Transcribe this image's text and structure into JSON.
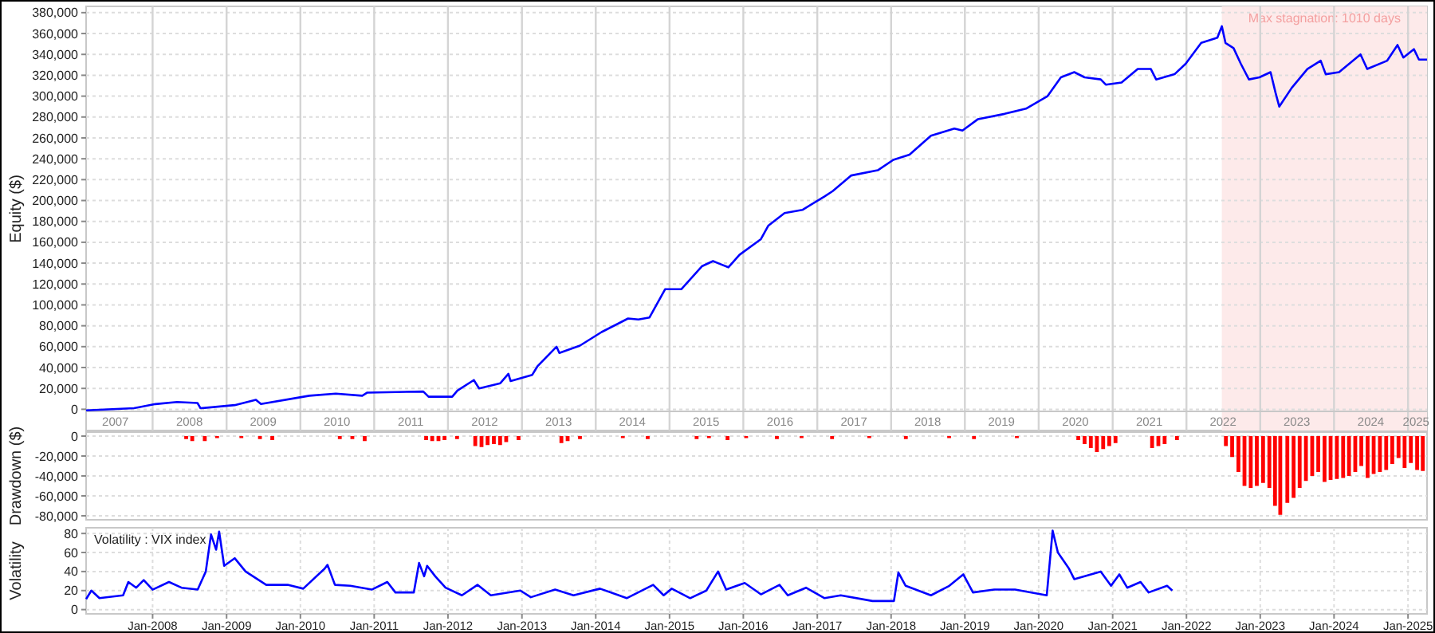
{
  "chart_data": [
    {
      "type": "line",
      "ylabel": "Equity ($)",
      "grid": true,
      "xlim": [
        "2007-02-06",
        "2025-04-05"
      ],
      "ylim": [
        -2000,
        386000
      ],
      "yticks": [
        0,
        {
          "value": 20000,
          "label": "20,000"
        },
        {
          "value": 40000,
          "label": "40,000"
        },
        {
          "value": 60000,
          "label": "60,000"
        },
        {
          "value": 80000,
          "label": "80,000"
        },
        {
          "value": 100000,
          "label": "100,000"
        },
        {
          "value": 120000,
          "label": "120,000"
        },
        {
          "value": 140000,
          "label": "140,000"
        },
        {
          "value": 160000,
          "label": "160,000"
        },
        {
          "value": 180000,
          "label": "180,000"
        },
        {
          "value": 200000,
          "label": "200,000"
        },
        {
          "value": 220000,
          "label": "220,000"
        },
        {
          "value": 240000,
          "label": "240,000"
        },
        {
          "value": 260000,
          "label": "260,000"
        },
        {
          "value": 280000,
          "label": "280,000"
        },
        {
          "value": 300000,
          "label": "300,000"
        },
        {
          "value": 320000,
          "label": "320,000"
        },
        {
          "value": 340000,
          "label": "340,000"
        },
        {
          "value": 360000,
          "label": "360,000"
        },
        {
          "value": 380000,
          "label": "380,000"
        }
      ],
      "xticks": [
        {
          "value": "2007-07-01",
          "label": "2007"
        },
        {
          "value": "2008-01-01",
          "label": null
        },
        {
          "value": "2008-07-01",
          "label": "2008"
        },
        {
          "value": "2009-01-01",
          "label": null
        },
        {
          "value": "2009-07-01",
          "label": "2009"
        },
        {
          "value": "2010-01-01",
          "label": null
        },
        {
          "value": "2010-07-01",
          "label": "2010"
        },
        {
          "value": "2011-01-01",
          "label": null
        },
        {
          "value": "2011-07-01",
          "label": "2011"
        },
        {
          "value": "2012-01-01",
          "label": null
        },
        {
          "value": "2012-07-01",
          "label": "2012"
        },
        {
          "value": "2013-01-01",
          "label": null
        },
        {
          "value": "2013-07-01",
          "label": "2013"
        },
        {
          "value": "2014-01-01",
          "label": null
        },
        {
          "value": "2014-07-01",
          "label": "2014"
        },
        {
          "value": "2015-01-01",
          "label": null
        },
        {
          "value": "2015-07-01",
          "label": "2015"
        },
        {
          "value": "2016-01-01",
          "label": null
        },
        {
          "value": "2016-07-01",
          "label": "2016"
        },
        {
          "value": "2017-01-01",
          "label": null
        },
        {
          "value": "2017-07-01",
          "label": "2017"
        },
        {
          "value": "2018-01-01",
          "label": null
        },
        {
          "value": "2018-07-01",
          "label": "2018"
        },
        {
          "value": "2019-01-01",
          "label": null
        },
        {
          "value": "2019-07-01",
          "label": "2019"
        },
        {
          "value": "2020-01-01",
          "label": null
        },
        {
          "value": "2020-07-01",
          "label": "2020"
        },
        {
          "value": "2021-01-01",
          "label": null
        },
        {
          "value": "2021-07-01",
          "label": "2021"
        },
        {
          "value": "2022-01-01",
          "label": null
        },
        {
          "value": "2022-07-01",
          "label": "2022"
        },
        {
          "value": "2023-01-01",
          "label": null
        },
        {
          "value": "2023-07-01",
          "label": "2023"
        },
        {
          "value": "2024-01-01",
          "label": null
        },
        {
          "value": "2024-07-01",
          "label": "2024"
        },
        {
          "value": "2025-01-01",
          "label": null
        },
        {
          "value": "2025-02-10",
          "label": "2025"
        }
      ],
      "bands": [
        {
          "axis": "x",
          "from": "2022-06-25",
          "to": "2025-04-05",
          "label": "Max stagnation: 1010 days",
          "color": "#fdeaea"
        }
      ],
      "x": [
        "2007-02-06",
        "2007-10-01",
        "2008-01-15",
        "2008-05-01",
        "2008-08-10",
        "2008-08-25",
        "2009-02-10",
        "2009-05-26",
        "2009-06-20",
        "2010-02-14",
        "2010-06-25",
        "2010-11-03",
        "2010-11-28",
        "2011-09-01",
        "2011-09-27",
        "2012-01-22",
        "2012-02-17",
        "2012-05-08",
        "2012-06-03",
        "2012-09-16",
        "2012-10-26",
        "2012-11-06",
        "2013-02-21",
        "2013-03-18",
        "2013-06-21",
        "2013-07-05",
        "2013-10-15",
        "2014-01-30",
        "2014-06-10",
        "2014-07-31",
        "2014-09-24",
        "2014-12-10",
        "2015-02-28",
        "2015-06-10",
        "2015-08-04",
        "2015-08-29",
        "2015-10-19",
        "2015-12-13",
        "2016-03-28",
        "2016-05-04",
        "2016-07-23",
        "2016-10-19",
        "2017-02-06",
        "2017-03-18",
        "2017-06-18",
        "2017-10-27",
        "2018-01-12",
        "2018-04-02",
        "2018-07-17",
        "2018-11-10",
        "2018-12-20",
        "2019-03-07",
        "2019-07-16",
        "2019-10-30",
        "2020-02-14",
        "2020-04-20",
        "2020-06-25",
        "2020-08-15",
        "2020-11-03",
        "2020-11-28",
        "2021-02-14",
        "2021-05-05",
        "2021-07-09",
        "2021-08-04",
        "2021-11-03",
        "2021-12-28",
        "2022-03-15",
        "2022-06-03",
        "2022-06-25",
        "2022-07-13",
        "2022-08-22",
        "2022-09-27",
        "2022-11-06",
        "2022-12-28",
        "2023-02-21",
        "2023-03-18",
        "2023-04-05",
        "2023-06-06",
        "2023-08-22",
        "2023-10-27",
        "2023-11-21",
        "2024-01-26",
        "2024-05-11",
        "2024-06-13",
        "2024-09-20",
        "2024-11-10",
        "2024-12-09",
        "2025-01-30",
        "2025-02-24",
        "2025-04-05"
      ],
      "series": [
        {
          "color": "#0000ff",
          "values": [
            -1000,
            1000,
            5000,
            7000,
            6000,
            1000,
            4000,
            9000,
            5000,
            13000,
            15000,
            13000,
            16000,
            17000,
            12000,
            12000,
            18000,
            28000,
            20000,
            25000,
            34000,
            27000,
            33000,
            41000,
            60000,
            54000,
            61000,
            74000,
            87000,
            86000,
            88000,
            115000,
            115000,
            137000,
            142000,
            140000,
            136000,
            148000,
            163000,
            176000,
            188000,
            191000,
            204000,
            209000,
            224000,
            229000,
            239000,
            244000,
            262000,
            269000,
            267000,
            278000,
            283000,
            288000,
            300000,
            318000,
            323000,
            318000,
            316000,
            311000,
            313000,
            326000,
            326000,
            316000,
            321000,
            331000,
            351000,
            356000,
            367000,
            351000,
            346000,
            331000,
            316000,
            318000,
            323000,
            303000,
            290000,
            308000,
            326000,
            334000,
            321000,
            323000,
            340000,
            326000,
            334000,
            349000,
            337000,
            345000,
            335000,
            335000
          ]
        }
      ]
    },
    {
      "type": "bar",
      "ylabel": "Drawdown ($)",
      "grid": "y",
      "tick_labels": "y",
      "color": "#ff0000",
      "xlim": [
        "2007-02-06",
        "2025-04-05"
      ],
      "ylim": [
        -84000,
        4000
      ],
      "yticks": [
        0,
        {
          "value": -20000,
          "label": "-20,000"
        },
        {
          "value": -40000,
          "label": "-40,000"
        },
        {
          "value": -60000,
          "label": "-60,000"
        },
        {
          "value": -80000,
          "label": "-80,000"
        }
      ],
      "x": [
        "2008-06-15",
        "2008-07-15",
        "2008-09-15",
        "2008-11-15",
        "2009-03-15",
        "2009-06-15",
        "2009-08-15",
        "2010-07-15",
        "2010-09-15",
        "2010-11-15",
        "2011-09-15",
        "2011-10-15",
        "2011-11-15",
        "2011-12-15",
        "2012-02-15",
        "2012-05-15",
        "2012-06-15",
        "2012-07-15",
        "2012-08-15",
        "2012-09-15",
        "2012-10-15",
        "2012-12-15",
        "2013-07-15",
        "2013-08-15",
        "2013-10-15",
        "2014-05-15",
        "2014-09-15",
        "2015-05-15",
        "2015-07-15",
        "2015-10-15",
        "2016-01-15",
        "2016-06-15",
        "2016-10-15",
        "2017-03-15",
        "2017-09-15",
        "2018-03-15",
        "2018-10-15",
        "2019-02-15",
        "2019-09-15",
        "2020-07-15",
        "2020-08-15",
        "2020-09-15",
        "2020-10-15",
        "2020-11-15",
        "2020-12-15",
        "2021-01-15",
        "2021-07-15",
        "2021-08-15",
        "2021-09-15",
        "2021-11-15",
        "2022-07-15",
        "2022-08-15",
        "2022-09-15",
        "2022-10-15",
        "2022-11-15",
        "2022-12-15",
        "2023-01-15",
        "2023-02-15",
        "2023-03-15",
        "2023-04-10",
        "2023-05-15",
        "2023-06-15",
        "2023-07-15",
        "2023-08-15",
        "2023-09-15",
        "2023-10-15",
        "2023-11-15",
        "2023-12-15",
        "2024-01-15",
        "2024-02-15",
        "2024-03-15",
        "2024-04-15",
        "2024-05-15",
        "2024-06-15",
        "2024-07-15",
        "2024-08-15",
        "2024-09-15",
        "2024-10-15",
        "2024-11-15",
        "2024-12-15",
        "2025-01-15",
        "2025-02-15",
        "2025-03-15"
      ],
      "values": [
        -3000,
        -5000,
        -5000,
        -2000,
        -2000,
        -3000,
        -4000,
        -3000,
        -3000,
        -5000,
        -4000,
        -5000,
        -5000,
        -4000,
        -3000,
        -10000,
        -11000,
        -9000,
        -8000,
        -9000,
        -6000,
        -4000,
        -7000,
        -5000,
        -3000,
        -2000,
        -3000,
        -3000,
        -2000,
        -4000,
        -2000,
        -3000,
        -2000,
        -3000,
        -2000,
        -3000,
        -2000,
        -3000,
        -2000,
        -4000,
        -8000,
        -12000,
        -16000,
        -13000,
        -10000,
        -7000,
        -12000,
        -10000,
        -8000,
        -4000,
        -10000,
        -21000,
        -36000,
        -50000,
        -52000,
        -50000,
        -47000,
        -52000,
        -70000,
        -79000,
        -67000,
        -62000,
        -52000,
        -45000,
        -40000,
        -36000,
        -46000,
        -44000,
        -43000,
        -42000,
        -40000,
        -36000,
        -30000,
        -42000,
        -38000,
        -36000,
        -34000,
        -28000,
        -22000,
        -32000,
        -27000,
        -34000,
        -35000
      ]
    },
    {
      "type": "line",
      "ylabel": "Volatility",
      "grid": true,
      "annotations": [
        "Volatility : VIX index"
      ],
      "xlim": [
        "2007-02-06",
        "2025-04-05"
      ],
      "ylim": [
        -4.5,
        86
      ],
      "yticks": [
        0,
        20,
        40,
        60,
        80
      ],
      "xticks": [
        {
          "value": "2008-01-01",
          "label": "Jan-2008"
        },
        {
          "value": "2009-01-01",
          "label": "Jan-2009"
        },
        {
          "value": "2010-01-01",
          "label": "Jan-2010"
        },
        {
          "value": "2011-01-01",
          "label": "Jan-2011"
        },
        {
          "value": "2012-01-01",
          "label": "Jan-2012"
        },
        {
          "value": "2013-01-01",
          "label": "Jan-2013"
        },
        {
          "value": "2014-01-01",
          "label": "Jan-2014"
        },
        {
          "value": "2015-01-01",
          "label": "Jan-2015"
        },
        {
          "value": "2016-01-01",
          "label": "Jan-2016"
        },
        {
          "value": "2017-01-01",
          "label": "Jan-2017"
        },
        {
          "value": "2018-01-01",
          "label": "Jan-2018"
        },
        {
          "value": "2019-01-01",
          "label": "Jan-2019"
        },
        {
          "value": "2020-01-01",
          "label": "Jan-2020"
        },
        {
          "value": "2021-01-01",
          "label": "Jan-2021"
        },
        {
          "value": "2022-01-01",
          "label": "Jan-2022"
        },
        {
          "value": "2023-01-01",
          "label": "Jan-2023"
        },
        {
          "value": "2024-01-01",
          "label": "Jan-2024"
        },
        {
          "value": "2025-01-01",
          "label": "Jan-2025"
        }
      ],
      "x": [
        "2007-02-06",
        "2007-03-04",
        "2007-04-13",
        "2007-08-08",
        "2007-09-03",
        "2007-10-12",
        "2007-11-18",
        "2008-01-01",
        "2008-03-22",
        "2008-05-23",
        "2008-08-11",
        "2008-09-20",
        "2008-10-16",
        "2008-11-10",
        "2008-11-25",
        "2008-12-20",
        "2009-02-10",
        "2009-04-05",
        "2009-07-16",
        "2009-10-30",
        "2010-01-15",
        "2010-05-01",
        "2010-05-15",
        "2010-06-21",
        "2010-09-05",
        "2010-12-20",
        "2011-03-07",
        "2011-04-16",
        "2011-07-16",
        "2011-08-11",
        "2011-09-05",
        "2011-09-20",
        "2011-10-30",
        "2011-12-20",
        "2012-03-10",
        "2012-05-26",
        "2012-07-31",
        "2012-12-24",
        "2013-02-14",
        "2013-06-14",
        "2013-09-13",
        "2014-01-22",
        "2014-06-03",
        "2014-10-12",
        "2014-12-03",
        "2015-01-12",
        "2015-04-13",
        "2015-07-02",
        "2015-08-29",
        "2015-10-08",
        "2016-01-08",
        "2016-03-28",
        "2016-06-28",
        "2016-08-08",
        "2016-11-06",
        "2017-02-06",
        "2017-04-27",
        "2017-10-01",
        "2018-01-15",
        "2018-02-06",
        "2018-03-14",
        "2018-07-17",
        "2018-10-16",
        "2018-12-24",
        "2019-02-10",
        "2019-05-26",
        "2019-09-06",
        "2020-02-10",
        "2020-03-10",
        "2020-04-05",
        "2020-05-30",
        "2020-06-25",
        "2020-11-03",
        "2020-12-24",
        "2021-02-03",
        "2021-03-14",
        "2021-05-19",
        "2021-06-28",
        "2021-09-27",
        "2021-10-23"
      ],
      "series": [
        {
          "color": "#0000ff",
          "values": [
            11,
            20,
            12,
            15,
            29,
            23,
            31,
            21,
            29,
            23,
            21,
            40,
            79,
            63,
            82,
            46,
            54,
            40,
            26,
            26,
            22,
            43,
            47,
            26,
            25,
            21,
            29,
            18,
            18,
            49,
            35,
            46,
            35,
            23,
            15,
            26,
            15,
            20,
            13,
            21,
            15,
            22,
            12,
            26,
            15,
            22,
            12,
            20,
            40,
            21,
            28,
            16,
            26,
            15,
            23,
            12,
            15,
            9,
            9,
            39,
            25,
            15,
            25,
            37,
            18,
            21,
            21,
            15,
            83,
            60,
            43,
            32,
            40,
            25,
            37,
            23,
            29,
            18,
            25,
            20
          ]
        }
      ]
    }
  ]
}
